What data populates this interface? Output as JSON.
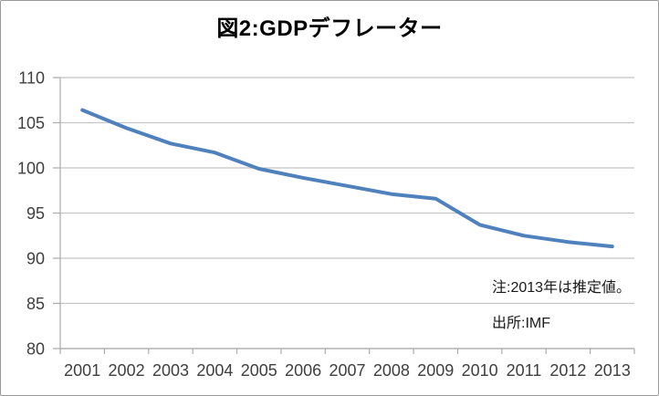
{
  "chart_data": {
    "type": "line",
    "title": "図2:GDPデフレーター",
    "categories": [
      "2001",
      "2002",
      "2003",
      "2004",
      "2005",
      "2006",
      "2007",
      "2008",
      "2009",
      "2010",
      "2011",
      "2012",
      "2013"
    ],
    "values": [
      106.4,
      104.4,
      102.7,
      101.7,
      99.9,
      98.9,
      98.0,
      97.1,
      96.6,
      93.7,
      92.5,
      91.8,
      91.3
    ],
    "ylim": [
      80,
      110
    ],
    "yticks": [
      80,
      85,
      90,
      95,
      100,
      105,
      110
    ],
    "grid": true,
    "legend": "none",
    "annotations": [
      {
        "id": "note-estimate",
        "text": "注:2013年は推定値。"
      },
      {
        "id": "note-source",
        "text": "出所:IMF"
      }
    ],
    "colors": {
      "line": "#4F81BD",
      "grid": "#C4C4C4",
      "axis": "#ABABAB",
      "tick_label": "#3F3F3F",
      "title": "#000000",
      "note": "#1A1A1A"
    }
  }
}
